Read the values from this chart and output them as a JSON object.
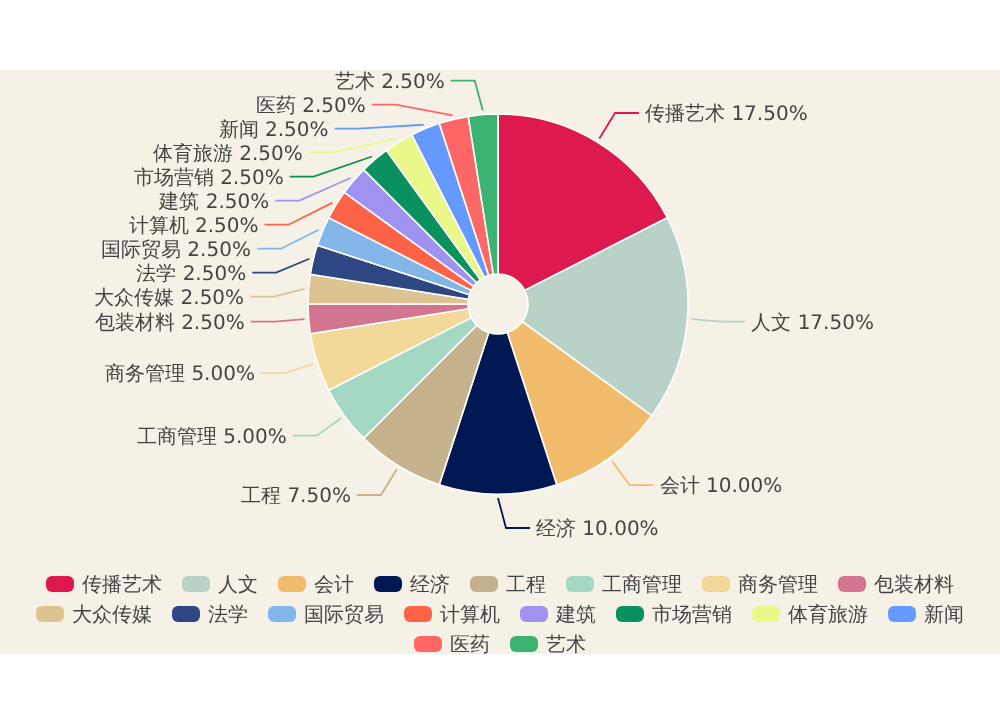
{
  "chart_data": {
    "type": "donut",
    "legend": "bottom",
    "categories": [
      "传播艺术",
      "人文",
      "会计",
      "经济",
      "工程",
      "工商管理",
      "商务管理",
      "包装材料",
      "大众传媒",
      "法学",
      "国际贸易",
      "计算机",
      "建筑",
      "市场营销",
      "体育旅游",
      "新闻",
      "医药",
      "艺术"
    ],
    "values": [
      17.5,
      17.5,
      10,
      10,
      7.5,
      5,
      5,
      2.5,
      2.5,
      2.5,
      2.5,
      2.5,
      2.5,
      2.5,
      2.5,
      2.5,
      2.5,
      2.5
    ],
    "value_labels": [
      "17.50%",
      "17.50%",
      "10.00%",
      "10.00%",
      "7.50%",
      "5.00%",
      "5.00%",
      "2.50%",
      "2.50%",
      "2.50%",
      "2.50%",
      "2.50%",
      "2.50%",
      "2.50%",
      "2.50%",
      "2.50%",
      "2.50%",
      "2.50%"
    ],
    "colors": [
      "#dd1950",
      "#b8d2c8",
      "#f1bb6c",
      "#001852",
      "#c6b38e",
      "#a4d8c2",
      "#f3d999",
      "#d3758f",
      "#dcc392",
      "#2e4783",
      "#82b6e9",
      "#ff6347",
      "#a092f1",
      "#0a915d",
      "#eaf889",
      "#6699ff",
      "#ff6666",
      "#3cb371"
    ]
  }
}
